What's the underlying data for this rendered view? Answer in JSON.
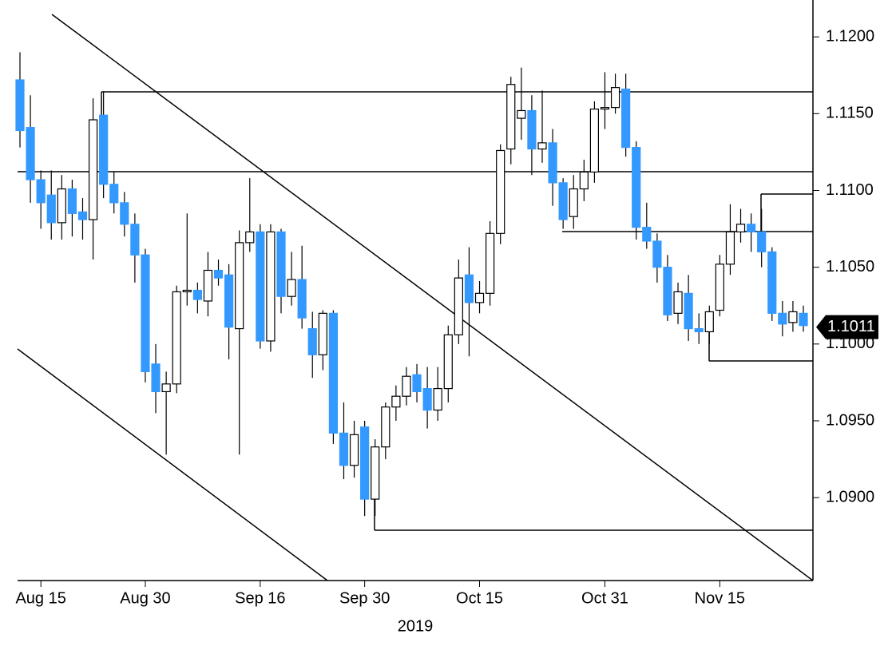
{
  "chart_data": {
    "type": "candlestick",
    "xlabel": "2019",
    "categories": [
      null,
      null,
      "Aug 15",
      null,
      null,
      null,
      null,
      null,
      null,
      null,
      null,
      null,
      "Aug 30",
      null,
      null,
      null,
      null,
      null,
      null,
      null,
      null,
      null,
      null,
      "Sep 16",
      null,
      null,
      null,
      null,
      null,
      null,
      null,
      null,
      null,
      "Sep 30",
      null,
      null,
      null,
      null,
      null,
      null,
      null,
      null,
      null,
      null,
      "Oct 15",
      null,
      null,
      null,
      null,
      null,
      null,
      null,
      null,
      null,
      null,
      null,
      "Oct 31",
      null,
      null,
      null,
      null,
      null,
      null,
      null,
      null,
      null,
      null,
      "Nov 15",
      null,
      null,
      null,
      null,
      null,
      null,
      null,
      null
    ],
    "open": [
      1.1172,
      1.1141,
      1.1107,
      1.1097,
      1.1079,
      1.1101,
      1.1086,
      1.1081,
      1.1149,
      1.1104,
      1.1092,
      1.1078,
      1.1058,
      1.0987,
      1.0969,
      1.0974,
      1.1034,
      1.1035,
      1.1028,
      1.1048,
      1.1045,
      1.101,
      1.1066,
      1.1073,
      1.1002,
      1.1073,
      1.1031,
      1.1042,
      1.101,
      1.0993,
      1.102,
      1.0942,
      1.0921,
      1.0946,
      1.0899,
      1.0933,
      1.0959,
      1.0966,
      1.098,
      1.0971,
      1.0957,
      1.0971,
      1.1006,
      1.1045,
      1.1027,
      1.1033,
      1.1072,
      1.1127,
      1.1147,
      1.1152,
      1.1127,
      1.1131,
      1.1105,
      1.1083,
      1.1101,
      1.1112,
      1.1153,
      1.1154,
      1.1166,
      1.1128,
      1.1076,
      1.1067,
      1.105,
      1.102,
      1.1033,
      1.101,
      1.1008,
      1.1022,
      1.1052,
      1.1073,
      1.1078,
      1.1073,
      1.106,
      1.102,
      1.1014,
      1.102
    ],
    "close": [
      1.1139,
      1.1107,
      1.1092,
      1.1079,
      1.1101,
      1.1085,
      1.1081,
      1.1146,
      1.1104,
      1.1092,
      1.1078,
      1.1058,
      1.0982,
      1.0969,
      1.0974,
      1.1034,
      1.1035,
      1.1029,
      1.1048,
      1.1043,
      1.1011,
      1.1066,
      1.1073,
      1.1002,
      1.1073,
      1.1031,
      1.1042,
      1.1017,
      1.0993,
      1.102,
      1.0942,
      1.0921,
      1.0941,
      1.0899,
      1.0933,
      1.0959,
      1.0966,
      1.0979,
      1.0969,
      1.0957,
      1.0971,
      1.1006,
      1.1043,
      1.1027,
      1.1033,
      1.1072,
      1.1126,
      1.1169,
      1.1152,
      1.1127,
      1.1131,
      1.1105,
      1.1081,
      1.1101,
      1.1112,
      1.1153,
      1.1154,
      1.1167,
      1.1128,
      1.1076,
      1.1067,
      1.105,
      1.1019,
      1.1034,
      1.101,
      1.1008,
      1.1021,
      1.1052,
      1.1073,
      1.1078,
      1.1073,
      1.106,
      1.102,
      1.1013,
      1.1021,
      1.1012
    ],
    "high": [
      1.119,
      1.1162,
      1.1113,
      1.1113,
      1.111,
      1.1107,
      1.1095,
      1.116,
      1.1164,
      1.1112,
      1.1099,
      1.1085,
      1.1062,
      1.1,
      1.0982,
      1.1038,
      1.1085,
      1.104,
      1.106,
      1.1055,
      1.1052,
      1.1074,
      1.1108,
      1.1078,
      1.1078,
      1.1075,
      1.106,
      1.1064,
      1.1021,
      1.1022,
      1.1022,
      1.0962,
      1.095,
      1.095,
      1.0938,
      1.0962,
      1.0973,
      1.0985,
      1.0987,
      1.0985,
      1.0985,
      1.1012,
      1.1055,
      1.1063,
      1.1041,
      1.108,
      1.113,
      1.1174,
      1.118,
      1.1162,
      1.1165,
      1.114,
      1.1108,
      1.111,
      1.112,
      1.1158,
      1.1177,
      1.1176,
      1.1176,
      1.1132,
      1.1092,
      1.1072,
      1.1058,
      1.104,
      1.1045,
      1.102,
      1.1025,
      1.1058,
      1.1091,
      1.1088,
      1.1085,
      1.1088,
      1.1063,
      1.1028,
      1.1028,
      1.1025
    ],
    "low": [
      1.1128,
      1.1092,
      1.1075,
      1.1068,
      1.1068,
      1.107,
      1.1068,
      1.1055,
      1.1095,
      1.1085,
      1.107,
      1.104,
      1.0975,
      1.0955,
      1.0928,
      1.0968,
      1.1025,
      1.102,
      1.1018,
      1.1038,
      1.099,
      1.0928,
      1.106,
      1.0997,
      1.0995,
      1.102,
      1.1025,
      1.101,
      1.0978,
      1.0983,
      1.0935,
      1.0912,
      1.0913,
      1.0888,
      1.0888,
      1.0925,
      1.095,
      1.096,
      1.0962,
      1.0945,
      1.095,
      1.0962,
      1.1,
      1.0992,
      1.102,
      1.1025,
      1.1065,
      1.1117,
      1.1133,
      1.111,
      1.1118,
      1.109,
      1.1075,
      1.1075,
      1.1093,
      1.1105,
      1.114,
      1.115,
      1.1122,
      1.1068,
      1.1062,
      1.104,
      1.1015,
      1.1013,
      1.1002,
      1.1,
      1.1,
      1.1018,
      1.1045,
      1.1066,
      1.106,
      1.105,
      1.1015,
      1.1005,
      1.1008,
      1.1008
    ],
    "up_color": "#ffffff",
    "down_color": "#3399ff",
    "ylim": [
      1.0846,
      1.1224
    ],
    "yticks": [
      {
        "value": 1.12,
        "label": "1.1200"
      },
      {
        "value": 1.115,
        "label": "1.1150"
      },
      {
        "value": 1.11,
        "label": "1.1100"
      },
      {
        "value": 1.105,
        "label": "1.1050"
      },
      {
        "value": 1.1,
        "label": "1.1000"
      },
      {
        "value": 1.095,
        "label": "1.0950"
      },
      {
        "value": 1.09,
        "label": "1.0900"
      }
    ],
    "last_price": 1.1011
  }
}
